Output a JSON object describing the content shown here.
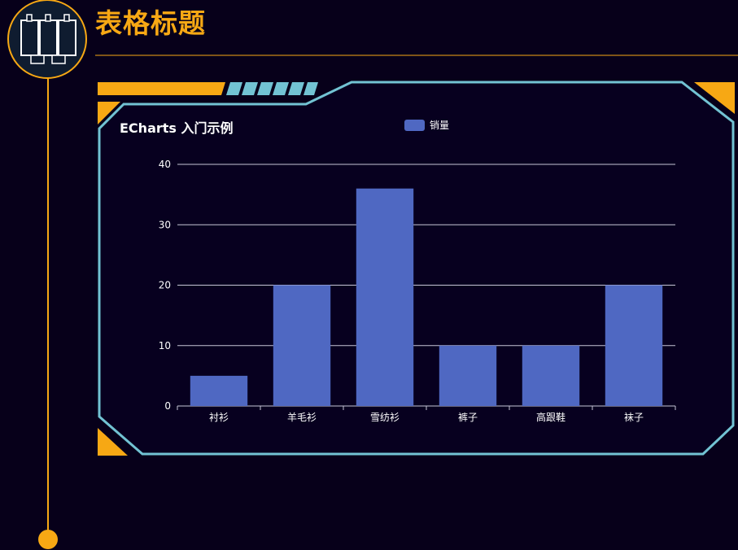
{
  "page": {
    "title": "表格标题"
  },
  "colors": {
    "accent": "#f7a814",
    "frame": "#72c3d3",
    "bar": "#4f68c2",
    "background": "#07001a"
  },
  "icons": {
    "header": "table-columns-icon"
  },
  "chart_data": {
    "type": "bar",
    "title": "ECharts 入门示例",
    "categories": [
      "衬衫",
      "羊毛衫",
      "雪纺衫",
      "裤子",
      "高跟鞋",
      "袜子"
    ],
    "series": [
      {
        "name": "销量",
        "values": [
          5,
          20,
          36,
          10,
          10,
          20
        ]
      }
    ],
    "ylim": [
      0,
      40
    ],
    "yticks": [
      0,
      10,
      20,
      30,
      40
    ],
    "grid": true,
    "legend": "top-center"
  }
}
